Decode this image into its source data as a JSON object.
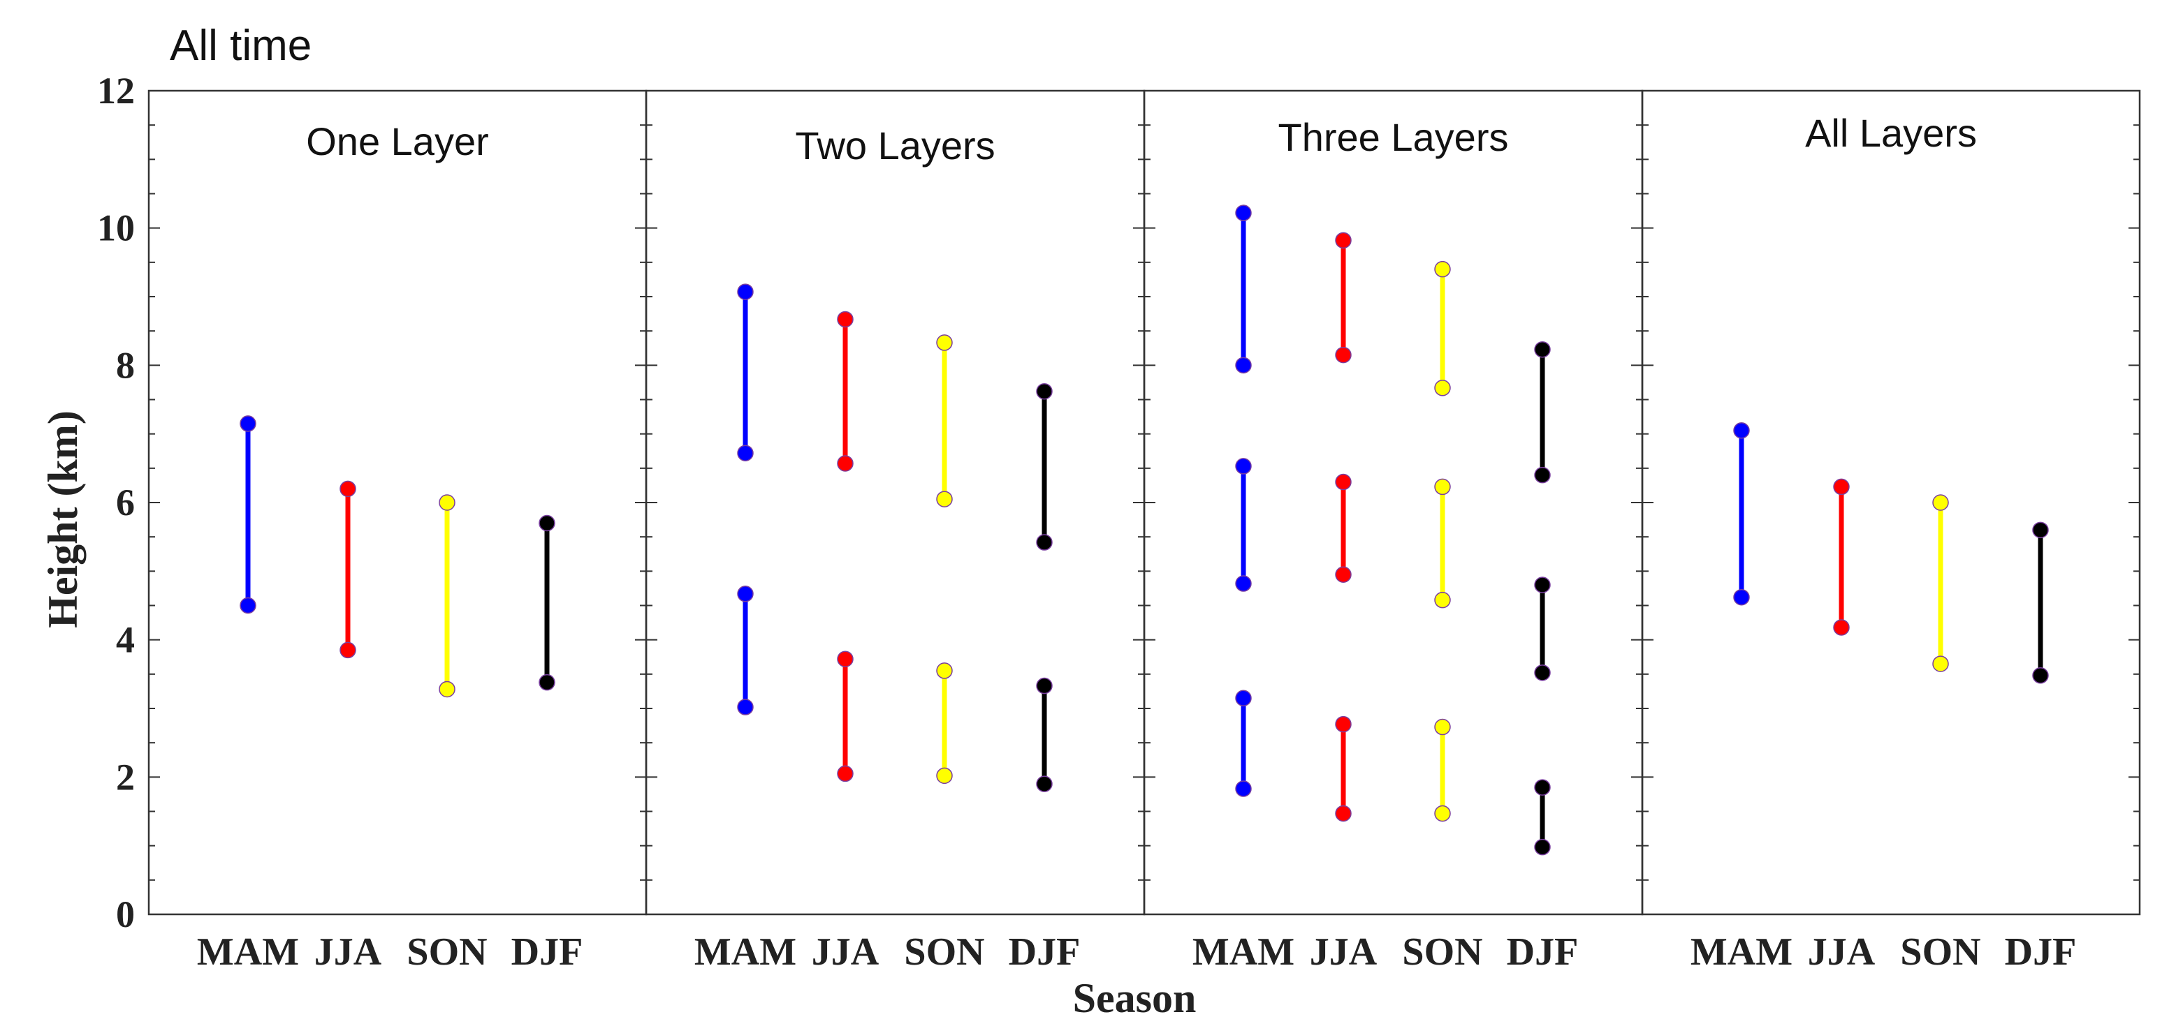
{
  "chart_data": {
    "type": "range",
    "title": "All time",
    "xlabel": "Season",
    "ylabel": "Height (km)",
    "ylim": [
      0,
      12
    ],
    "yticks": [
      0,
      2,
      4,
      6,
      8,
      10,
      12
    ],
    "categories": [
      "MAM",
      "JJA",
      "SON",
      "DJF"
    ],
    "colors": {
      "MAM": "#0000ff",
      "JJA": "#ff0000",
      "SON": "#ffff00",
      "DJF": "#000000"
    },
    "panels": [
      {
        "title": "One Layer",
        "ranges": [
          {
            "season": "MAM",
            "low": 4.5,
            "high": 7.15
          },
          {
            "season": "JJA",
            "low": 3.85,
            "high": 6.2
          },
          {
            "season": "SON",
            "low": 3.28,
            "high": 6.0
          },
          {
            "season": "DJF",
            "low": 3.38,
            "high": 5.7
          }
        ]
      },
      {
        "title": "Two Layers",
        "ranges": [
          {
            "season": "MAM",
            "low": 6.72,
            "high": 9.07
          },
          {
            "season": "JJA",
            "low": 6.57,
            "high": 8.67
          },
          {
            "season": "SON",
            "low": 6.05,
            "high": 8.33
          },
          {
            "season": "DJF",
            "low": 5.42,
            "high": 7.62
          },
          {
            "season": "MAM",
            "low": 3.02,
            "high": 4.67
          },
          {
            "season": "JJA",
            "low": 2.05,
            "high": 3.72
          },
          {
            "season": "SON",
            "low": 2.02,
            "high": 3.55
          },
          {
            "season": "DJF",
            "low": 1.9,
            "high": 3.33
          }
        ]
      },
      {
        "title": "Three Layers",
        "ranges": [
          {
            "season": "MAM",
            "low": 8.0,
            "high": 10.22
          },
          {
            "season": "JJA",
            "low": 8.15,
            "high": 9.82
          },
          {
            "season": "SON",
            "low": 7.67,
            "high": 9.4
          },
          {
            "season": "DJF",
            "low": 6.4,
            "high": 8.23
          },
          {
            "season": "MAM",
            "low": 4.82,
            "high": 6.53
          },
          {
            "season": "JJA",
            "low": 4.95,
            "high": 6.3
          },
          {
            "season": "SON",
            "low": 4.58,
            "high": 6.23
          },
          {
            "season": "DJF",
            "low": 3.52,
            "high": 4.8
          },
          {
            "season": "MAM",
            "low": 1.83,
            "high": 3.15
          },
          {
            "season": "JJA",
            "low": 1.47,
            "high": 2.77
          },
          {
            "season": "SON",
            "low": 1.47,
            "high": 2.73
          },
          {
            "season": "DJF",
            "low": 0.98,
            "high": 1.85
          }
        ]
      },
      {
        "title": "All Layers",
        "ranges": [
          {
            "season": "MAM",
            "low": 4.62,
            "high": 7.05
          },
          {
            "season": "JJA",
            "low": 4.18,
            "high": 6.23
          },
          {
            "season": "SON",
            "low": 3.65,
            "high": 6.0
          },
          {
            "season": "DJF",
            "low": 3.48,
            "high": 5.6
          }
        ]
      }
    ]
  }
}
